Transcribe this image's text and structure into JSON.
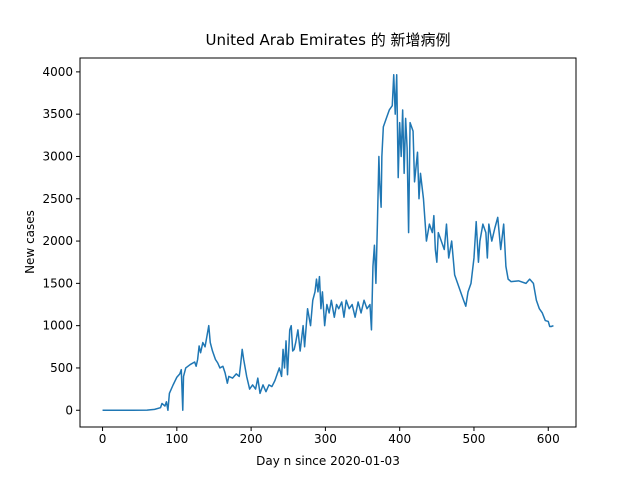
{
  "chart_data": {
    "type": "line",
    "title": "United Arab Emirates 的 新增病例",
    "x_label": "Day n since 2020-01-03",
    "y_label": "New cases",
    "x": [
      0,
      20,
      40,
      60,
      70,
      78,
      80,
      84,
      86,
      88,
      90,
      95,
      100,
      104,
      106,
      108,
      109,
      112,
      118,
      124,
      126,
      128,
      130,
      132,
      135,
      138,
      141,
      143,
      145,
      148,
      152,
      155,
      158,
      162,
      165,
      168,
      170,
      175,
      180,
      184,
      186,
      188,
      190,
      194,
      198,
      202,
      206,
      209,
      212,
      216,
      220,
      224,
      228,
      232,
      236,
      238,
      241,
      243,
      245,
      247,
      249,
      252,
      254,
      256,
      258,
      260,
      263,
      266,
      270,
      272,
      276,
      280,
      283,
      286,
      288,
      290,
      292,
      294,
      296,
      299,
      302,
      305,
      308,
      312,
      315,
      318,
      322,
      325,
      328,
      332,
      336,
      340,
      344,
      348,
      352,
      356,
      360,
      362,
      364,
      366,
      368,
      370,
      372,
      373,
      375,
      376,
      378,
      382,
      386,
      390,
      392,
      394,
      396,
      398,
      400,
      402,
      404,
      406,
      408,
      410,
      412,
      414,
      418,
      420,
      424,
      426,
      428,
      432,
      434,
      436,
      440,
      444,
      446,
      448,
      450,
      452,
      456,
      460,
      463,
      466,
      470,
      474,
      478,
      482,
      486,
      489,
      492,
      496,
      500,
      503,
      506,
      508,
      512,
      516,
      518,
      520,
      524,
      528,
      532,
      536,
      540,
      543,
      546,
      550,
      560,
      570,
      575,
      580,
      584,
      588,
      592,
      596,
      600,
      602,
      604,
      607
    ],
    "series": [
      {
        "name": "New cases",
        "color": "#1f77b4",
        "values": [
          0,
          0,
          0,
          2,
          10,
          30,
          80,
          50,
          100,
          0,
          200,
          300,
          390,
          430,
          480,
          0,
          400,
          500,
          540,
          570,
          520,
          600,
          760,
          680,
          800,
          750,
          900,
          1000,
          800,
          700,
          600,
          560,
          500,
          520,
          440,
          320,
          400,
          380,
          430,
          400,
          550,
          720,
          600,
          400,
          250,
          300,
          250,
          380,
          200,
          300,
          220,
          300,
          280,
          350,
          450,
          500,
          400,
          720,
          500,
          820,
          420,
          950,
          1000,
          700,
          720,
          800,
          950,
          700,
          1000,
          750,
          1200,
          1000,
          1300,
          1400,
          1550,
          1400,
          1580,
          1200,
          1400,
          1000,
          1250,
          1150,
          1300,
          1100,
          1250,
          1200,
          1280,
          1100,
          1300,
          1200,
          1250,
          1100,
          1280,
          1150,
          1300,
          1200,
          1250,
          950,
          1700,
          1950,
          1500,
          2200,
          3000,
          2700,
          2400,
          3000,
          3350,
          3450,
          3550,
          3600,
          3966,
          3500,
          3966,
          2750,
          3400,
          3000,
          3550,
          2800,
          3450,
          3100,
          2100,
          3400,
          3300,
          2700,
          3050,
          2500,
          2800,
          2500,
          2250,
          2000,
          2200,
          2100,
          2300,
          1900,
          1750,
          2100,
          2000,
          1900,
          2200,
          1800,
          2000,
          1600,
          1500,
          1400,
          1300,
          1230,
          1400,
          1500,
          1800,
          2230,
          1750,
          2000,
          2200,
          2100,
          1800,
          2200,
          2000,
          2150,
          2280,
          1900,
          2200,
          1700,
          1550,
          1520,
          1530,
          1500,
          1550,
          1500,
          1300,
          1200,
          1150,
          1060,
          1050,
          990,
          990,
          1000
        ]
      }
    ],
    "xlim": [
      -30.35,
      637.35
    ],
    "ylim": [
      -198,
      4164
    ],
    "xticks": [
      0,
      100,
      200,
      300,
      400,
      500,
      600
    ],
    "yticks": [
      0,
      500,
      1000,
      1500,
      2000,
      2500,
      3000,
      3500,
      4000
    ]
  }
}
